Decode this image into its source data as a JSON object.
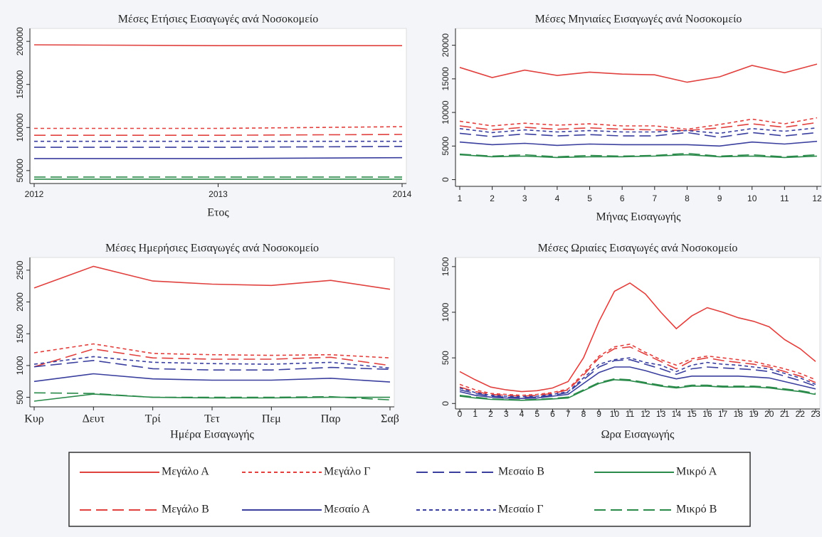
{
  "chart_data": [
    {
      "type": "line",
      "title": "Μέσες Ετήσιες Εισαγωγές ανά Νοσοκομείο",
      "x_label": "Ετος",
      "x": [
        2012,
        2013,
        2014
      ],
      "xlim": [
        2012,
        2014
      ],
      "xticks": [
        2012,
        2013,
        2014
      ],
      "ylim": [
        35000,
        215000
      ],
      "yticks": [
        50000,
        100000,
        150000,
        200000
      ],
      "series": [
        {
          "values": [
            196000,
            195000,
            195000
          ]
        },
        {
          "values": [
            91000,
            91000,
            92000
          ]
        },
        {
          "values": [
            99000,
            99000,
            101000
          ]
        },
        {
          "values": [
            64000,
            64000,
            65000
          ]
        },
        {
          "values": [
            77000,
            77000,
            78000
          ]
        },
        {
          "values": [
            84000,
            84000,
            84000
          ]
        },
        {
          "values": [
            40000,
            40000,
            40000
          ]
        },
        {
          "values": [
            42500,
            42500,
            42500
          ]
        }
      ]
    },
    {
      "type": "line",
      "title": "Μέσες Μηνιαίες Εισαγωγές ανά Νοσοκομείο",
      "x_label": "Μήνας Εισαγωγής",
      "x": [
        1,
        2,
        3,
        4,
        5,
        6,
        7,
        8,
        9,
        10,
        11,
        12
      ],
      "xlim": [
        1,
        12
      ],
      "xticks": [
        1,
        2,
        3,
        4,
        5,
        6,
        7,
        8,
        9,
        10,
        11,
        12
      ],
      "ylim": [
        -1000,
        22500
      ],
      "yticks": [
        0,
        5000,
        10000,
        15000,
        20000
      ],
      "series": [
        {
          "values": [
            16700,
            15200,
            16300,
            15500,
            16000,
            15700,
            15600,
            14500,
            15300,
            17000,
            15900,
            17200
          ]
        },
        {
          "values": [
            8000,
            7400,
            7800,
            7500,
            7700,
            7500,
            7400,
            7300,
            7700,
            8300,
            7800,
            8500
          ]
        },
        {
          "values": [
            8700,
            8000,
            8400,
            8100,
            8300,
            8000,
            8000,
            7500,
            8200,
            9000,
            8300,
            9200
          ]
        },
        {
          "values": [
            5600,
            5200,
            5400,
            5100,
            5300,
            5200,
            5200,
            5200,
            5000,
            5600,
            5300,
            5700
          ]
        },
        {
          "values": [
            6900,
            6400,
            6800,
            6500,
            6700,
            6500,
            6500,
            7000,
            6300,
            7000,
            6500,
            7000
          ]
        },
        {
          "values": [
            7600,
            7000,
            7400,
            7100,
            7300,
            7100,
            7100,
            7300,
            6900,
            7600,
            7200,
            7700
          ]
        },
        {
          "values": [
            3700,
            3400,
            3500,
            3300,
            3400,
            3400,
            3500,
            3700,
            3400,
            3500,
            3300,
            3500
          ]
        },
        {
          "values": [
            3800,
            3500,
            3700,
            3400,
            3600,
            3500,
            3600,
            3900,
            3500,
            3700,
            3400,
            3700
          ]
        }
      ]
    },
    {
      "type": "line",
      "title": "Μέσες Ημερήσιες Εισαγωγές ανά Νοσοκομείο",
      "x_label": "Ημέρα Εισαγωγής",
      "categories": [
        "Κυρ",
        "Δευτ",
        "Τρί",
        "Τετ",
        "Πεμ",
        "Παρ",
        "Σαβ"
      ],
      "ylim": [
        350,
        2700
      ],
      "yticks": [
        500,
        1000,
        1500,
        2000,
        2500
      ],
      "series": [
        {
          "values": [
            2220,
            2560,
            2330,
            2280,
            2260,
            2340,
            2200
          ]
        },
        {
          "values": [
            980,
            1260,
            1120,
            1100,
            1100,
            1130,
            1000
          ]
        },
        {
          "values": [
            1200,
            1340,
            1190,
            1170,
            1160,
            1170,
            1120
          ]
        },
        {
          "values": [
            750,
            870,
            790,
            770,
            770,
            800,
            740
          ]
        },
        {
          "values": [
            980,
            1080,
            950,
            930,
            930,
            970,
            940
          ]
        },
        {
          "values": [
            1020,
            1140,
            1050,
            1030,
            1020,
            1050,
            960
          ]
        },
        {
          "values": [
            440,
            550,
            500,
            490,
            490,
            500,
            500
          ]
        },
        {
          "values": [
            570,
            560,
            500,
            500,
            500,
            510,
            460
          ]
        }
      ]
    },
    {
      "type": "line",
      "title": "Μέσες Ωριαίες Εισαγωγές ανά Νοσοκομείο",
      "x_label": "Ωρα Εισαγωγής",
      "x": [
        0,
        1,
        2,
        3,
        4,
        5,
        6,
        7,
        8,
        9,
        10,
        11,
        12,
        13,
        14,
        15,
        16,
        17,
        18,
        19,
        20,
        21,
        22,
        23
      ],
      "xlim": [
        0,
        23
      ],
      "xticks": [
        0,
        1,
        2,
        3,
        4,
        5,
        6,
        7,
        8,
        9,
        10,
        11,
        12,
        13,
        14,
        15,
        16,
        17,
        18,
        19,
        20,
        21,
        22,
        23
      ],
      "ylim": [
        -60,
        1600
      ],
      "yticks": [
        0,
        500,
        1000,
        1500
      ],
      "series": [
        {
          "values": [
            350,
            260,
            180,
            150,
            130,
            140,
            170,
            240,
            500,
            900,
            1230,
            1320,
            1200,
            1000,
            820,
            960,
            1050,
            1000,
            940,
            900,
            840,
            700,
            600,
            460
          ]
        },
        {
          "values": [
            180,
            130,
            100,
            90,
            80,
            90,
            110,
            150,
            310,
            500,
            600,
            620,
            540,
            460,
            380,
            470,
            500,
            470,
            450,
            430,
            400,
            350,
            300,
            230
          ]
        },
        {
          "values": [
            210,
            150,
            110,
            100,
            90,
            100,
            120,
            160,
            330,
            520,
            620,
            650,
            560,
            480,
            420,
            490,
            520,
            500,
            480,
            460,
            420,
            380,
            330,
            260
          ]
        },
        {
          "values": [
            130,
            90,
            70,
            60,
            55,
            60,
            80,
            100,
            220,
            340,
            400,
            400,
            360,
            310,
            270,
            300,
            300,
            300,
            300,
            290,
            280,
            240,
            200,
            160
          ]
        },
        {
          "values": [
            150,
            110,
            80,
            70,
            65,
            70,
            90,
            120,
            260,
            400,
            470,
            480,
            430,
            380,
            320,
            380,
            400,
            390,
            380,
            370,
            350,
            300,
            250,
            190
          ]
        },
        {
          "values": [
            170,
            120,
            90,
            80,
            75,
            80,
            100,
            130,
            280,
            430,
            480,
            500,
            450,
            420,
            350,
            420,
            450,
            430,
            420,
            400,
            380,
            330,
            280,
            210
          ]
        },
        {
          "values": [
            80,
            60,
            45,
            40,
            35,
            40,
            50,
            60,
            140,
            220,
            260,
            250,
            220,
            190,
            170,
            190,
            190,
            180,
            180,
            180,
            170,
            150,
            130,
            100
          ]
        },
        {
          "values": [
            90,
            70,
            50,
            45,
            40,
            45,
            55,
            70,
            150,
            230,
            270,
            260,
            230,
            200,
            180,
            200,
            200,
            190,
            190,
            190,
            180,
            160,
            140,
            110
          ]
        }
      ]
    }
  ],
  "legend": {
    "series": [
      {
        "name": "Μεγάλο Α",
        "color": "#e0413e",
        "dash": "solid"
      },
      {
        "name": "Μεγάλο Β",
        "color": "#e0413e",
        "dash": "longdash"
      },
      {
        "name": "Μεγάλο Γ",
        "color": "#e0413e",
        "dash": "shortdash"
      },
      {
        "name": "Μεσαίο Α",
        "color": "#3a3f9e",
        "dash": "solid"
      },
      {
        "name": "Μεσαίο Β",
        "color": "#3a3f9e",
        "dash": "longdash"
      },
      {
        "name": "Μεσαίο Γ",
        "color": "#3a3f9e",
        "dash": "shortdash"
      },
      {
        "name": "Μικρό Α",
        "color": "#2a8a4a",
        "dash": "solid"
      },
      {
        "name": "Μικρό Β",
        "color": "#2a8a4a",
        "dash": "longdash"
      }
    ]
  }
}
